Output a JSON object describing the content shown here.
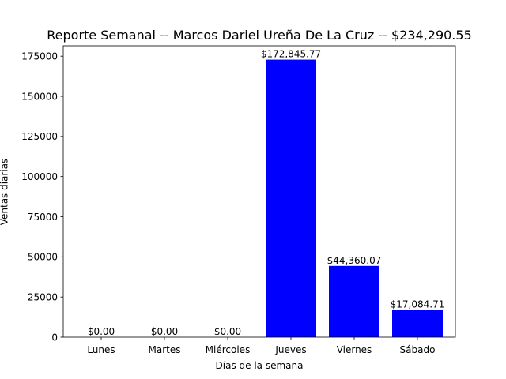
{
  "chart_data": {
    "type": "bar",
    "title": "Reporte Semanal -- Marcos Dariel Ureña De La Cruz -- $234,290.55",
    "xlabel": "Días de la semana",
    "ylabel": "Ventas diarias",
    "categories": [
      "Lunes",
      "Martes",
      "Miércoles",
      "Jueves",
      "Viernes",
      "Sábado"
    ],
    "values": [
      0,
      0,
      0,
      172845.77,
      44360.07,
      17084.71
    ],
    "data_labels": [
      "$0.00",
      "$0.00",
      "$0.00",
      "$172,845.77",
      "$44,360.07",
      "$17,084.71"
    ],
    "ylim": [
      0,
      181488
    ],
    "yticks": [
      0,
      25000,
      50000,
      75000,
      100000,
      125000,
      150000,
      175000
    ],
    "ytick_labels": [
      "0",
      "25000",
      "50000",
      "75000",
      "100000",
      "125000",
      "150000",
      "175000"
    ],
    "bar_color": "#0000ff",
    "grid": false,
    "legend": "none"
  }
}
